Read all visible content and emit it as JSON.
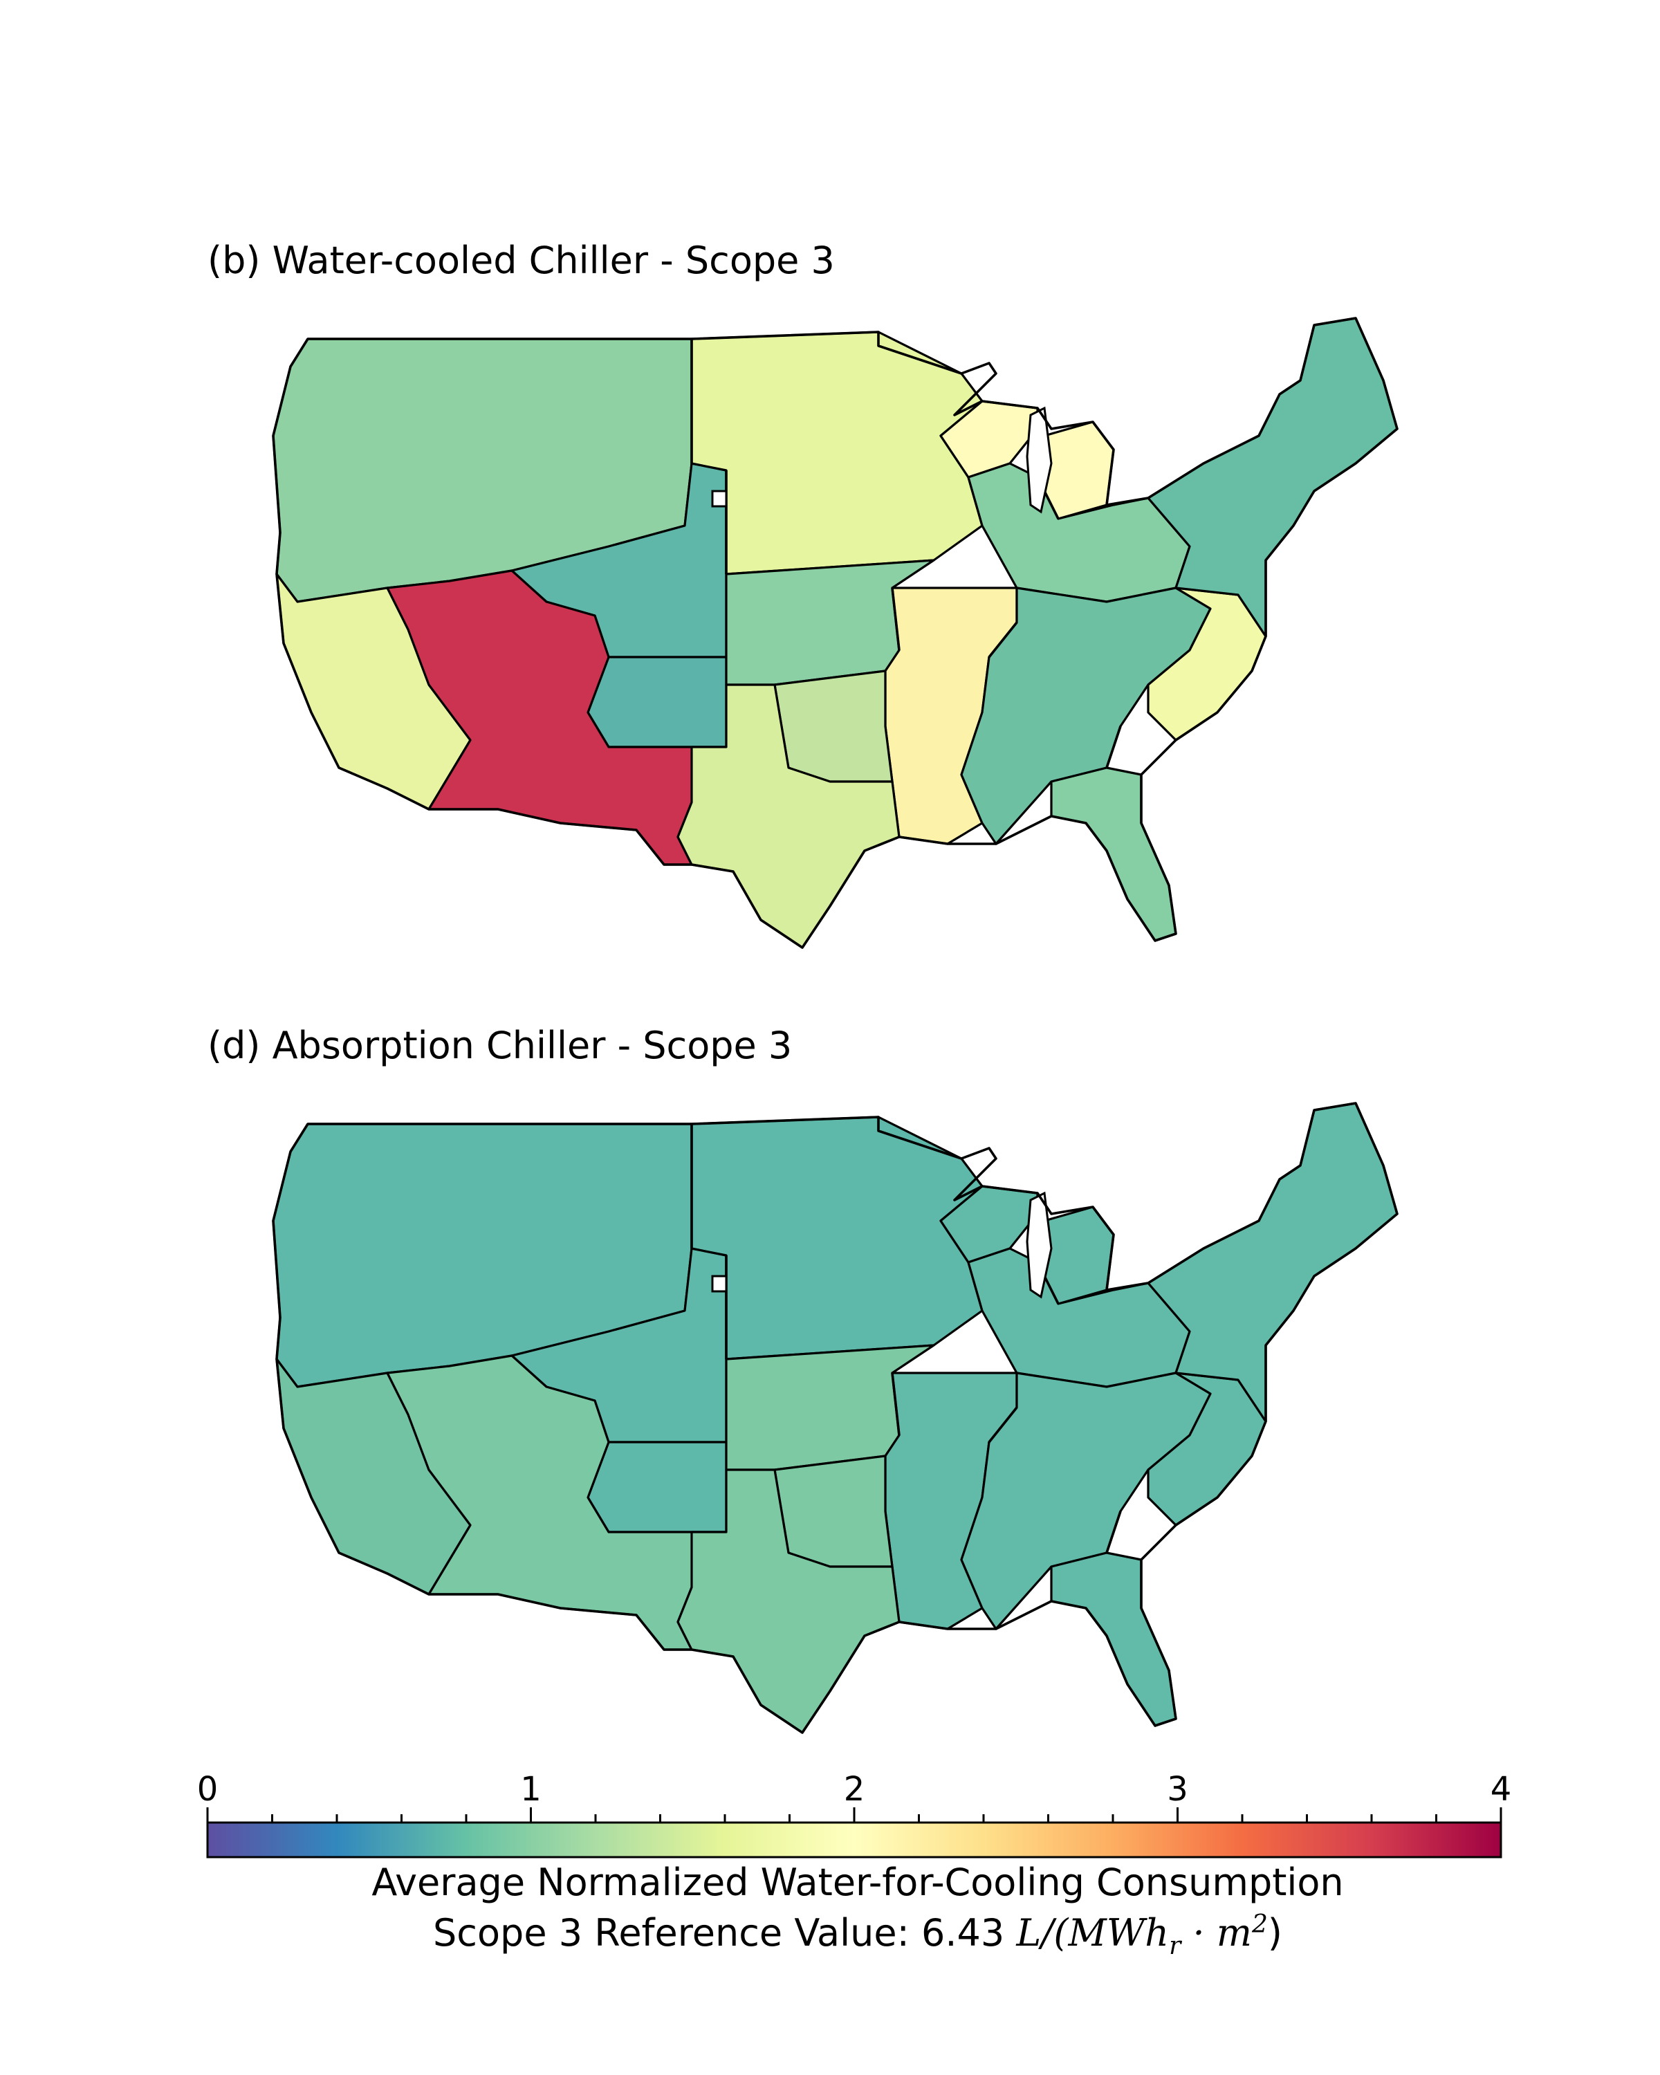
{
  "panels": [
    {
      "id": "b",
      "title": "(b) Water-cooled Chiller - Scope 3",
      "colors": {
        "northwest": "#8fd1a3",
        "north_central": "#e6f5a0",
        "rocky": "#5eb7a8",
        "colorado": "#5cb3a9",
        "california": "#e9f4a3",
        "southwest": "#cc3350",
        "texas": "#d7ee9e",
        "oklahoma": "#c3e4a0",
        "mississippi": "#fdf2aa",
        "great_lakes": "#fefbbd",
        "southeast": "#6dc0a2",
        "florida": "#86cea4",
        "carolina": "#f2f9a9",
        "northeast": "#68bea4",
        "midwest_east": "#86cea4",
        "kansas": "#8bd0a4"
      }
    },
    {
      "id": "d",
      "title": "(d) Absorption Chiller - Scope 3",
      "colors": {
        "northwest": "#5fb9aa",
        "north_central": "#5fb9aa",
        "rocky": "#5fb9aa",
        "colorado": "#5fb9aa",
        "california": "#72c3a4",
        "southwest": "#7ac8a4",
        "texas": "#7dc9a3",
        "oklahoma": "#7dc9a3",
        "mississippi": "#62bba9",
        "great_lakes": "#62bba9",
        "southeast": "#62bba9",
        "florida": "#62bba9",
        "carolina": "#62bba9",
        "northeast": "#62bba9",
        "midwest_east": "#62bba9",
        "kansas": "#7dc9a3"
      }
    }
  ],
  "colorbar": {
    "min": 0,
    "max": 4,
    "ticks": [
      "0",
      "1",
      "2",
      "3",
      "4"
    ],
    "minor_ticks_per_interval": 5,
    "colormap": "Spectral_r",
    "stops": [
      "#5e4fa2",
      "#3288bd",
      "#66c2a5",
      "#abdda4",
      "#e6f598",
      "#ffffbf",
      "#fee08b",
      "#fdae61",
      "#f46d43",
      "#d53e4f",
      "#9e0142"
    ],
    "label_line1": "Average Normalized Water-for-Cooling Consumption",
    "label_line2_prefix": "Scope 3 Reference Value: 6.43 ",
    "label_line2_unit": "L/(MWh",
    "label_line2_sub": "r",
    "label_line2_mid": " · m",
    "label_line2_sup": "2",
    "label_line2_end": ")"
  }
}
